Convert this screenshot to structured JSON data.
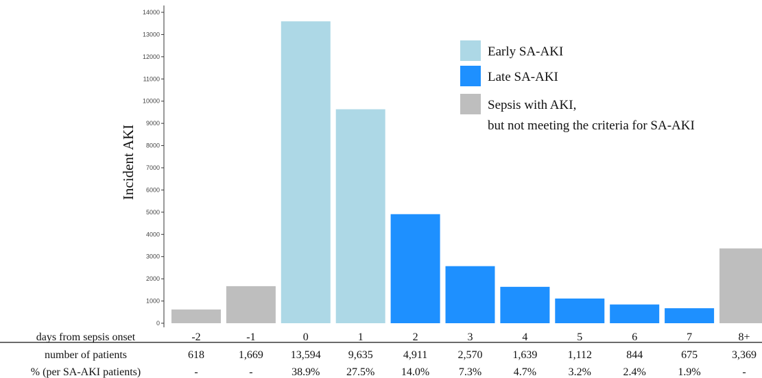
{
  "chart_data": {
    "type": "bar",
    "ylabel": "Incident AKI",
    "ylim": [
      0,
      14000
    ],
    "yticks": [
      0,
      1000,
      2000,
      3000,
      4000,
      5000,
      6000,
      7000,
      8000,
      9000,
      10000,
      11000,
      12000,
      13000,
      14000
    ],
    "categories": [
      "-2",
      "-1",
      "0",
      "1",
      "2",
      "3",
      "4",
      "5",
      "6",
      "7",
      "8+"
    ],
    "values": [
      618,
      1669,
      13594,
      9635,
      4911,
      2570,
      1639,
      1112,
      844,
      675,
      3369
    ],
    "bar_groups": [
      "sepsis_not_criteria",
      "sepsis_not_criteria",
      "early",
      "early",
      "late",
      "late",
      "late",
      "late",
      "late",
      "late",
      "sepsis_not_criteria"
    ],
    "legend": {
      "position": "top-right",
      "items": [
        {
          "key": "early",
          "lines": [
            "Early SA-AKI"
          ],
          "color": "#add8e6"
        },
        {
          "key": "late",
          "lines": [
            "Late SA-AKI"
          ],
          "color": "#1e90ff"
        },
        {
          "key": "sepsis_not_criteria",
          "lines": [
            "Sepsis with AKI,",
            "but not meeting the criteria for SA-AKI"
          ],
          "color": "#bebebe"
        }
      ]
    },
    "grid": false,
    "table": {
      "row_labels": [
        "days from sepsis onset",
        "number of patients",
        "% (per SA-AKI patients)"
      ],
      "days": [
        "-2",
        "-1",
        "0",
        "1",
        "2",
        "3",
        "4",
        "5",
        "6",
        "7",
        "8+"
      ],
      "patients": [
        "618",
        "1,669",
        "13,594",
        "9,635",
        "4,911",
        "2,570",
        "1,639",
        "1,112",
        "844",
        "675",
        "3,369"
      ],
      "percent": [
        "-",
        "-",
        "38.9%",
        "27.5%",
        "14.0%",
        "7.3%",
        "4.7%",
        "3.2%",
        "2.4%",
        "1.9%",
        "-"
      ]
    }
  }
}
